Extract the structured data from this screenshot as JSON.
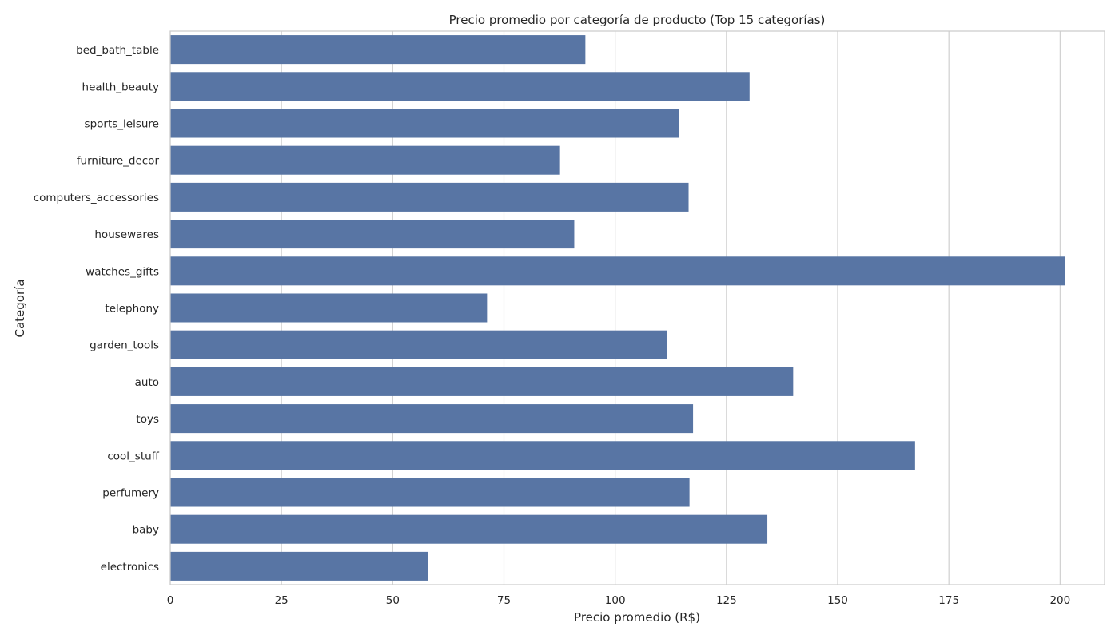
{
  "chart_data": {
    "type": "bar",
    "orientation": "horizontal",
    "title": "Precio promedio por categoría de producto (Top 15 categorías)",
    "xlabel": "Precio promedio (R$)",
    "ylabel": "Categoría",
    "categories": [
      "bed_bath_table",
      "health_beauty",
      "sports_leisure",
      "furniture_decor",
      "computers_accessories",
      "housewares",
      "watches_gifts",
      "telephony",
      "garden_tools",
      "auto",
      "toys",
      "cool_stuff",
      "perfumery",
      "baby",
      "electronics"
    ],
    "values": [
      93.3,
      130.2,
      114.3,
      87.6,
      116.5,
      90.8,
      201.1,
      71.2,
      111.6,
      140.0,
      117.5,
      167.4,
      116.7,
      134.2,
      57.9
    ],
    "xlim": [
      0,
      210
    ],
    "xticks": [
      0,
      25,
      50,
      75,
      100,
      125,
      150,
      175,
      200
    ],
    "xtick_labels": [
      "0",
      "25",
      "50",
      "75",
      "100",
      "125",
      "150",
      "175",
      "200"
    ],
    "grid": "vertical",
    "bar_color": "#5875a4",
    "grid_color": "#cccccc",
    "frame_color": "#cccccc"
  }
}
